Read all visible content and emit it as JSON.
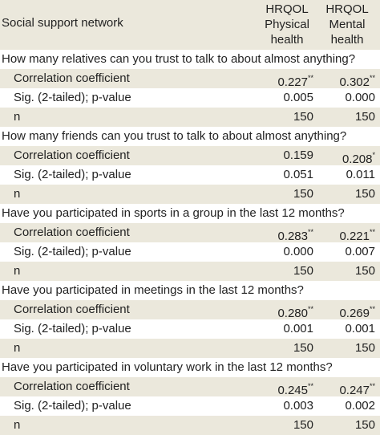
{
  "header": {
    "label": "Social support network",
    "columns": [
      [
        "HRQOL",
        "Physical",
        "health"
      ],
      [
        "HRQOL",
        "Mental",
        "health"
      ]
    ]
  },
  "sections": [
    {
      "question": "How many relatives can you trust to talk to about almost anything?",
      "rows": [
        {
          "label": "Correlation coefficient",
          "cells": [
            {
              "value": "0.227",
              "sup": "**"
            },
            {
              "value": "0.302",
              "sup": "**"
            }
          ]
        },
        {
          "label": "Sig. (2-tailed); p-value",
          "cells": [
            {
              "value": "0.005"
            },
            {
              "value": "0.000"
            }
          ]
        },
        {
          "label": "n",
          "cells": [
            {
              "value": "150"
            },
            {
              "value": "150"
            }
          ]
        }
      ]
    },
    {
      "question": "How many friends can you trust to talk to about almost anything?",
      "rows": [
        {
          "label": "Correlation coefficient",
          "cells": [
            {
              "value": "0.159"
            },
            {
              "value": "0.208",
              "sup": "*"
            }
          ]
        },
        {
          "label": "Sig. (2-tailed); p-value",
          "cells": [
            {
              "value": "0.051"
            },
            {
              "value": "0.011"
            }
          ]
        },
        {
          "label": "n",
          "cells": [
            {
              "value": "150"
            },
            {
              "value": "150"
            }
          ]
        }
      ]
    },
    {
      "question": "Have you participated in sports in a group in the last 12 months?",
      "rows": [
        {
          "label": "Correlation coefficient",
          "cells": [
            {
              "value": "0.283",
              "sup": "**"
            },
            {
              "value": "0.221",
              "sup": "**"
            }
          ]
        },
        {
          "label": "Sig. (2-tailed); p-value",
          "cells": [
            {
              "value": "0.000"
            },
            {
              "value": "0.007"
            }
          ]
        },
        {
          "label": "n",
          "cells": [
            {
              "value": "150"
            },
            {
              "value": "150"
            }
          ]
        }
      ]
    },
    {
      "question": "Have you participated in meetings in the last 12 months?",
      "rows": [
        {
          "label": "Correlation coefficient",
          "cells": [
            {
              "value": "0.280",
              "sup": "**"
            },
            {
              "value": "0.269",
              "sup": "**"
            }
          ]
        },
        {
          "label": "Sig. (2-tailed); p-value",
          "cells": [
            {
              "value": "0.001"
            },
            {
              "value": "0.001"
            }
          ]
        },
        {
          "label": "n",
          "cells": [
            {
              "value": "150"
            },
            {
              "value": "150"
            }
          ]
        }
      ]
    },
    {
      "question": "Have you participated in voluntary work in the last 12 months?",
      "rows": [
        {
          "label": "Correlation coefficient",
          "cells": [
            {
              "value": "0.245",
              "sup": "**"
            },
            {
              "value": "0.247",
              "sup": "**"
            }
          ]
        },
        {
          "label": "Sig. (2-tailed); p-value",
          "cells": [
            {
              "value": "0.003"
            },
            {
              "value": "0.002"
            }
          ]
        },
        {
          "label": "n",
          "cells": [
            {
              "value": "150"
            },
            {
              "value": "150"
            }
          ]
        }
      ]
    }
  ]
}
